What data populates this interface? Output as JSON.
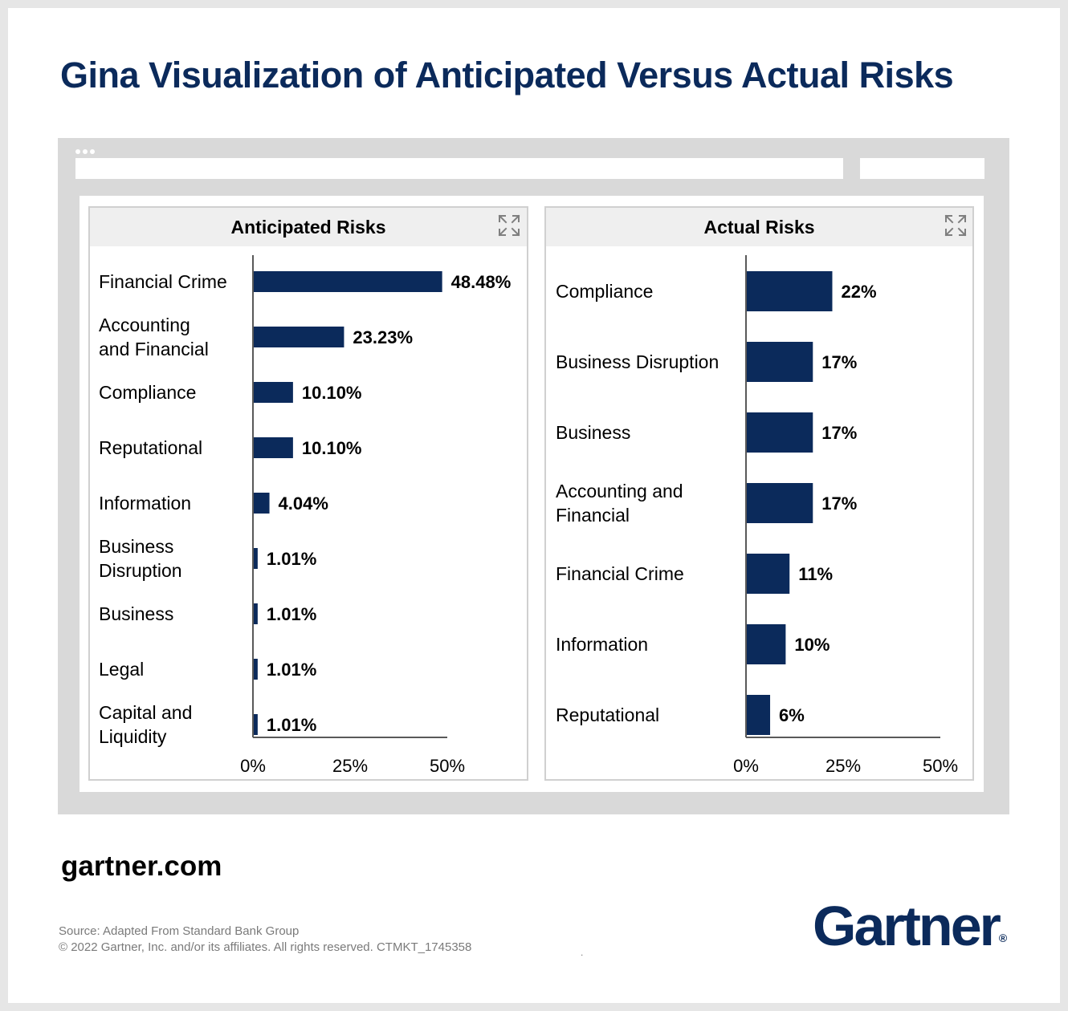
{
  "title": "Gina Visualization of Anticipated Versus Actual Risks",
  "colors": {
    "title": "#0b2a5b",
    "bar": "#0b2a5b",
    "axis": "#595959",
    "browser_frame": "#d9d9d9",
    "panel_header": "#efefef"
  },
  "browser": {
    "dots": 3,
    "icons": [
      "ellipsis-icon"
    ]
  },
  "panels": [
    {
      "title": "Anticipated Risks",
      "icon": "expand-icon"
    },
    {
      "title": "Actual Risks",
      "icon": "expand-icon"
    }
  ],
  "chart_data": [
    {
      "type": "bar",
      "orientation": "horizontal",
      "title": "Anticipated Risks",
      "categories": [
        [
          "Financial Crime"
        ],
        [
          "Accounting",
          "and Financial"
        ],
        [
          "Compliance"
        ],
        [
          "Reputational"
        ],
        [
          "Information"
        ],
        [
          "Business",
          "Disruption"
        ],
        [
          "Business"
        ],
        [
          "Legal"
        ],
        [
          "Capital and",
          "Liquidity"
        ]
      ],
      "values": [
        48.48,
        23.23,
        10.1,
        10.1,
        4.04,
        1.01,
        1.01,
        1.01,
        1.01
      ],
      "value_labels": [
        "48.48%",
        "23.23%",
        "10.10%",
        "10.10%",
        "4.04%",
        "1.01%",
        "1.01%",
        "1.01%",
        "1.01%"
      ],
      "xlim": [
        0,
        50
      ],
      "xticks": [
        0,
        25,
        50
      ],
      "xtick_labels": [
        "0%",
        "25%",
        "50%"
      ],
      "grid": false,
      "legend": "none"
    },
    {
      "type": "bar",
      "orientation": "horizontal",
      "title": "Actual Risks",
      "categories": [
        [
          "Compliance"
        ],
        [
          "Business Disruption"
        ],
        [
          "Business"
        ],
        [
          "Accounting and",
          "Financial"
        ],
        [
          "Financial Crime"
        ],
        [
          "Information"
        ],
        [
          "Reputational"
        ]
      ],
      "values": [
        22,
        17,
        17,
        17,
        11,
        10,
        6
      ],
      "value_labels": [
        "22%",
        "17%",
        "17%",
        "17%",
        "11%",
        "10%",
        "6%"
      ],
      "xlim": [
        0,
        50
      ],
      "xticks": [
        0,
        25,
        50
      ],
      "xtick_labels": [
        "0%",
        "25%",
        "50%"
      ],
      "grid": false,
      "legend": "none"
    }
  ],
  "footer": {
    "site": "gartner.com",
    "source": "Source: Adapted From Standard Bank Group",
    "copyright": "© 2022 Gartner, Inc. and/or its affiliates. All rights reserved. CTMKT_1745358",
    "mark": ".",
    "logo_text": "Gartner",
    "logo_registered": "®"
  }
}
